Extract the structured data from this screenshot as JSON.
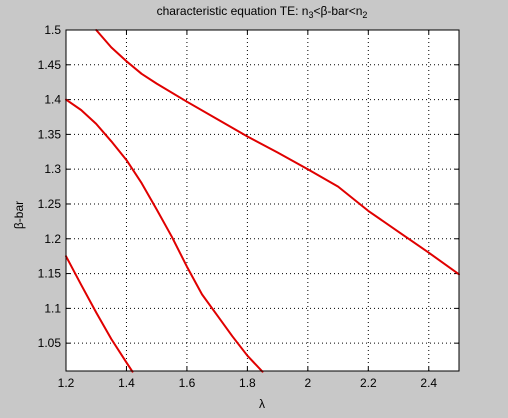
{
  "chart_data": {
    "type": "line",
    "title": {
      "main": "characteristic equation TE: n",
      "sub1": "3",
      "mid": "<β-bar<n",
      "sub2": "2"
    },
    "xlabel": "λ",
    "ylabel": "β-bar",
    "xlim": [
      1.2,
      2.5
    ],
    "ylim": [
      1.01,
      1.5
    ],
    "grid": true,
    "line_color": "#e00000",
    "xticks": [
      1.2,
      1.4,
      1.6,
      1.8,
      2.0,
      2.2,
      2.4
    ],
    "xtick_labels": [
      "1.2",
      "1.4",
      "1.6",
      "1.8",
      "2",
      "2.2",
      "2.4"
    ],
    "yticks": [
      1.05,
      1.1,
      1.15,
      1.2,
      1.25,
      1.3,
      1.35,
      1.4,
      1.45,
      1.5
    ],
    "ytick_labels": [
      "1.05",
      "1.1",
      "1.15",
      "1.2",
      "1.25",
      "1.3",
      "1.35",
      "1.4",
      "1.45",
      "1.5"
    ],
    "series": [
      {
        "x": [
          1.3,
          1.35,
          1.4,
          1.45,
          1.5,
          1.6,
          1.7,
          1.8,
          1.9,
          2.0,
          2.1,
          2.2,
          2.3,
          2.4,
          2.5
        ],
        "y": [
          1.5,
          1.475,
          1.455,
          1.437,
          1.423,
          1.397,
          1.372,
          1.347,
          1.324,
          1.3,
          1.275,
          1.24,
          1.21,
          1.18,
          1.149
        ]
      },
      {
        "x": [
          1.2,
          1.25,
          1.3,
          1.35,
          1.4,
          1.45,
          1.5,
          1.55,
          1.6,
          1.65,
          1.7,
          1.75,
          1.8,
          1.85
        ],
        "y": [
          1.4,
          1.385,
          1.365,
          1.34,
          1.313,
          1.28,
          1.242,
          1.203,
          1.16,
          1.12,
          1.09,
          1.06,
          1.032,
          1.009
        ]
      },
      {
        "x": [
          1.2,
          1.25,
          1.3,
          1.35,
          1.4,
          1.42
        ],
        "y": [
          1.175,
          1.134,
          1.094,
          1.056,
          1.022,
          1.009
        ]
      }
    ]
  }
}
